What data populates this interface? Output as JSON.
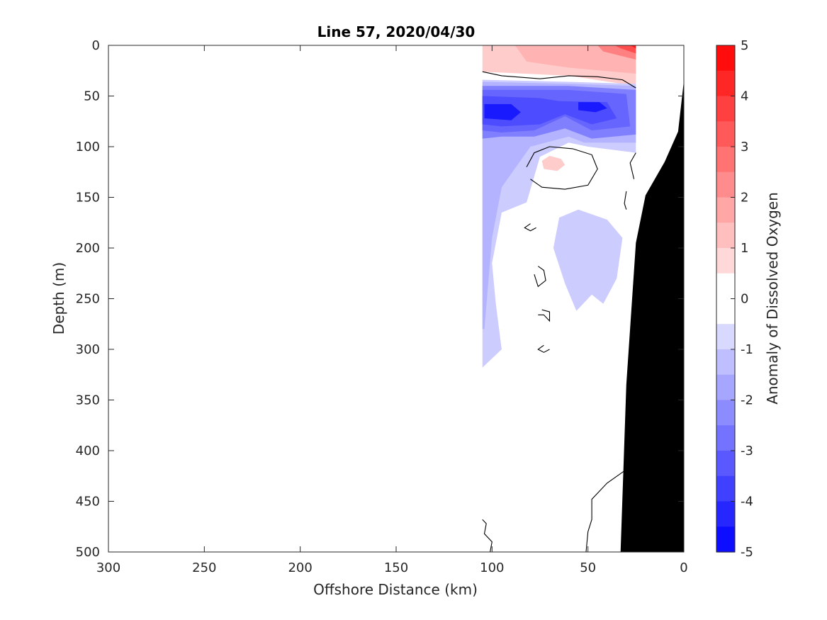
{
  "chart_data": {
    "type": "contour",
    "title": "Line 57, 2020/04/30",
    "xlabel": "Offshore Distance (km)",
    "ylabel": "Depth (m)",
    "x_reversed": true,
    "y_reversed": true,
    "xlim": [
      300,
      0
    ],
    "ylim": [
      0,
      500
    ],
    "x_ticks": [
      300,
      250,
      200,
      150,
      100,
      50,
      0
    ],
    "y_ticks": [
      0,
      50,
      100,
      150,
      200,
      250,
      300,
      350,
      400,
      450,
      500
    ],
    "grid": false,
    "colorbar": {
      "label": "Anomaly of Dissolved Oxygen",
      "range": [
        -5,
        5
      ],
      "ticks": [
        -5,
        -4,
        -3,
        -2,
        -1,
        0,
        1,
        2,
        3,
        4,
        5
      ],
      "low_color": "#0000ff",
      "high_color": "#ff0000"
    },
    "data_extent_x_km": [
      25,
      105
    ],
    "bathymetry": {
      "color": "#000000",
      "points": [
        [
          0,
          35
        ],
        [
          3,
          85
        ],
        [
          10,
          115
        ],
        [
          20,
          148
        ],
        [
          25,
          195
        ],
        [
          30,
          335
        ],
        [
          33,
          500
        ],
        [
          0,
          500
        ]
      ]
    },
    "filled_regions": [
      {
        "level": 1,
        "polygon": [
          [
            105,
            0
          ],
          [
            25,
            0
          ],
          [
            25,
            40
          ],
          [
            60,
            30
          ],
          [
            105,
            26
          ]
        ]
      },
      {
        "level": 1.5,
        "polygon": [
          [
            88,
            0
          ],
          [
            25,
            0
          ],
          [
            25,
            28
          ],
          [
            60,
            22
          ],
          [
            82,
            16
          ]
        ]
      },
      {
        "level": 2.5,
        "polygon": [
          [
            45,
            0
          ],
          [
            25,
            0
          ],
          [
            25,
            14
          ],
          [
            42,
            6
          ]
        ]
      },
      {
        "level": 3.5,
        "polygon": [
          [
            36,
            0
          ],
          [
            25,
            0
          ],
          [
            25,
            8
          ],
          [
            33,
            3
          ]
        ]
      },
      {
        "level": 4.5,
        "polygon": [
          [
            28,
            0
          ],
          [
            25,
            0
          ],
          [
            25,
            3
          ]
        ]
      },
      {
        "level": 1,
        "polygon": [
          [
            74,
            114
          ],
          [
            70,
            109
          ],
          [
            64,
            112
          ],
          [
            62,
            118
          ],
          [
            66,
            124
          ],
          [
            73,
            122
          ]
        ]
      },
      {
        "level": -1,
        "polygon": [
          [
            105,
            34
          ],
          [
            60,
            36
          ],
          [
            25,
            38
          ],
          [
            25,
            106
          ],
          [
            50,
            100
          ],
          [
            60,
            96
          ],
          [
            75,
            110
          ],
          [
            82,
            155
          ],
          [
            95,
            165
          ],
          [
            100,
            215
          ],
          [
            98,
            255
          ],
          [
            95,
            300
          ],
          [
            105,
            318
          ]
        ]
      },
      {
        "level": -1,
        "polygon": [
          [
            55,
            162
          ],
          [
            40,
            172
          ],
          [
            32,
            190
          ],
          [
            35,
            230
          ],
          [
            42,
            255
          ],
          [
            48,
            246
          ],
          [
            56,
            262
          ],
          [
            62,
            235
          ],
          [
            68,
            200
          ],
          [
            65,
            170
          ]
        ]
      },
      {
        "level": -1.5,
        "polygon": [
          [
            105,
            36
          ],
          [
            60,
            38
          ],
          [
            25,
            40
          ],
          [
            25,
            96
          ],
          [
            52,
            96
          ],
          [
            60,
            90
          ],
          [
            80,
            100
          ],
          [
            95,
            140
          ],
          [
            100,
            190
          ],
          [
            104,
            280
          ],
          [
            105,
            280
          ]
        ]
      },
      {
        "level": -2.5,
        "polygon": [
          [
            105,
            40
          ],
          [
            60,
            40
          ],
          [
            25,
            44
          ],
          [
            25,
            88
          ],
          [
            48,
            92
          ],
          [
            62,
            82
          ],
          [
            78,
            90
          ],
          [
            95,
            90
          ],
          [
            105,
            92
          ]
        ]
      },
      {
        "level": -3,
        "polygon": [
          [
            105,
            44
          ],
          [
            60,
            44
          ],
          [
            30,
            48
          ],
          [
            28,
            80
          ],
          [
            48,
            84
          ],
          [
            62,
            70
          ],
          [
            78,
            84
          ],
          [
            95,
            86
          ],
          [
            105,
            84
          ]
        ]
      },
      {
        "level": -3.5,
        "polygon": [
          [
            105,
            50
          ],
          [
            75,
            52
          ],
          [
            65,
            55
          ],
          [
            40,
            56
          ],
          [
            35,
            72
          ],
          [
            48,
            78
          ],
          [
            62,
            68
          ],
          [
            75,
            78
          ],
          [
            95,
            80
          ],
          [
            105,
            78
          ]
        ]
      },
      {
        "level": -4.5,
        "polygon": [
          [
            104,
            58
          ],
          [
            90,
            58
          ],
          [
            85,
            66
          ],
          [
            90,
            74
          ],
          [
            104,
            72
          ]
        ]
      },
      {
        "level": -4.5,
        "polygon": [
          [
            55,
            56
          ],
          [
            44,
            56
          ],
          [
            40,
            62
          ],
          [
            46,
            66
          ],
          [
            55,
            64
          ]
        ]
      }
    ],
    "zero_contours": [
      [
        [
          105,
          26
        ],
        [
          95,
          30
        ],
        [
          75,
          33
        ],
        [
          60,
          30
        ],
        [
          45,
          31
        ],
        [
          32,
          34
        ],
        [
          25,
          42
        ]
      ],
      [
        [
          82,
          120
        ],
        [
          78,
          106
        ],
        [
          70,
          100
        ],
        [
          58,
          102
        ],
        [
          48,
          108
        ],
        [
          45,
          122
        ],
        [
          50,
          138
        ],
        [
          62,
          142
        ],
        [
          74,
          140
        ],
        [
          80,
          132
        ]
      ],
      [
        [
          25,
          106
        ],
        [
          28,
          116
        ],
        [
          26,
          132
        ]
      ],
      [
        [
          30,
          144
        ],
        [
          31,
          156
        ],
        [
          30,
          162
        ]
      ],
      [
        [
          80,
          176
        ],
        [
          83,
          180
        ],
        [
          80,
          183
        ],
        [
          77,
          180
        ]
      ],
      [
        [
          76,
          218
        ],
        [
          73,
          222
        ],
        [
          72,
          232
        ],
        [
          76,
          238
        ],
        [
          78,
          226
        ]
      ],
      [
        [
          74,
          261
        ],
        [
          70,
          263
        ],
        [
          70,
          272
        ],
        [
          73,
          266
        ],
        [
          76,
          266
        ]
      ],
      [
        [
          73,
          296
        ],
        [
          76,
          300
        ],
        [
          73,
          303
        ],
        [
          70,
          300
        ]
      ],
      [
        [
          105,
          468
        ],
        [
          103,
          472
        ],
        [
          104,
          482
        ],
        [
          100,
          490
        ],
        [
          101,
          500
        ]
      ],
      [
        [
          31,
          420
        ],
        [
          40,
          432
        ],
        [
          48,
          448
        ],
        [
          48,
          468
        ],
        [
          50,
          480
        ],
        [
          51,
          500
        ]
      ]
    ]
  }
}
